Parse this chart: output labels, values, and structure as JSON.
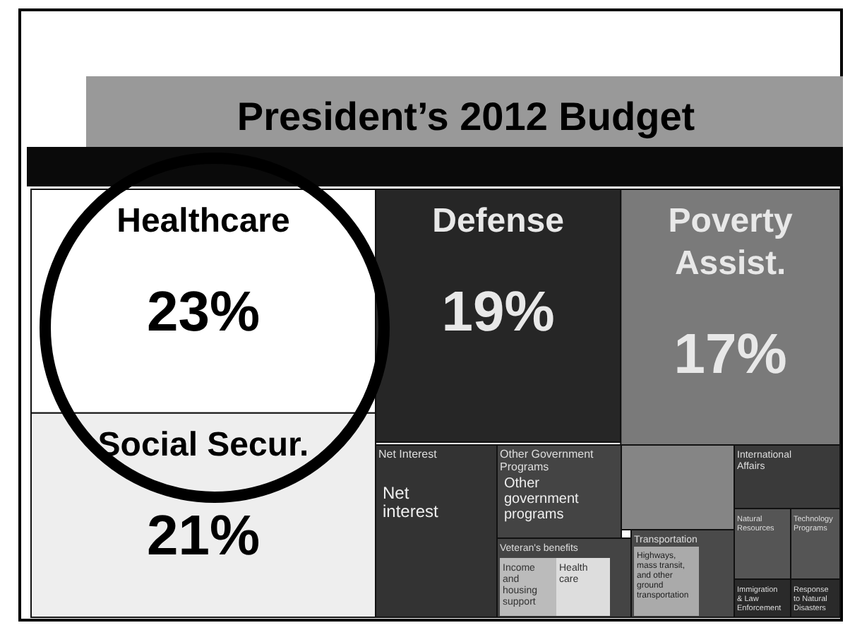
{
  "chart_data": {
    "type": "other",
    "title": "President’s 2012 Budget",
    "categories": [
      "Healthcare",
      "Social Secur.",
      "Defense",
      "Poverty Assist.",
      "Net Interest",
      "Other Government Programs",
      null,
      "Veteran's benefits",
      "Transportation",
      "International Affairs",
      "Natural Resources",
      "Technology Programs",
      "Immigration & Law Enforcement",
      "Response to Natural Disasters"
    ],
    "values": [
      23,
      21,
      19,
      17,
      null,
      null,
      null,
      null,
      null,
      null,
      null,
      null,
      null,
      null
    ],
    "value_labels": [
      "23%",
      "21%",
      "19%",
      "17%",
      null,
      null,
      null,
      null,
      null,
      null,
      null,
      null,
      null,
      null
    ],
    "colors": [
      "#ffffff",
      "#eeeeee",
      "#262626",
      "#7a7a7a",
      "#333333",
      "#444444",
      "#858585",
      "#444444",
      "#4a4a4a",
      "#3a3a3a",
      "#555555",
      "#555555",
      "#2a2a2a",
      "#2a2a2a"
    ],
    "annotations": [
      "Net interest",
      "Other government programs",
      "Income and housing support",
      "Health care",
      "Highways, mass transit, and other ground transportation"
    ]
  }
}
